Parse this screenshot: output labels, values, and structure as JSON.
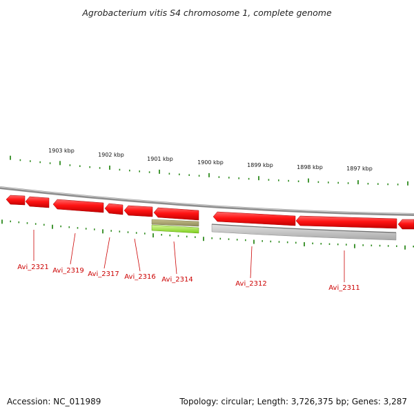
{
  "title": "Agrobacterium vitis S4 chromosome 1, complete genome",
  "footer": {
    "accession": "Accession: NC_011989",
    "summary": "Topology: circular; Length: 3,726,375 bp; Genes: 3,287"
  },
  "colors": {
    "gene_fill": "#ff1a1a",
    "gene_label": "#cc0000",
    "tick": "#2e8b1e",
    "backbone": "#8c8c8c",
    "rna_fill": "#9acd32",
    "pseudo_fill": "#bdbdbd"
  },
  "scale": {
    "unit": "kbp",
    "labels": [
      "1903 kbp",
      "1902 kbp",
      "1901 kbp",
      "1900 kbp",
      "1899 kbp",
      "1898 kbp",
      "1897 kbp"
    ]
  },
  "genes": [
    {
      "label": "Avi_2321"
    },
    {
      "label": "Avi_2319"
    },
    {
      "label": "Avi_2317"
    },
    {
      "label": "Avi_2316"
    },
    {
      "label": "Avi_2314"
    },
    {
      "label": "Avi_2312"
    },
    {
      "label": "Avi_2311"
    }
  ]
}
